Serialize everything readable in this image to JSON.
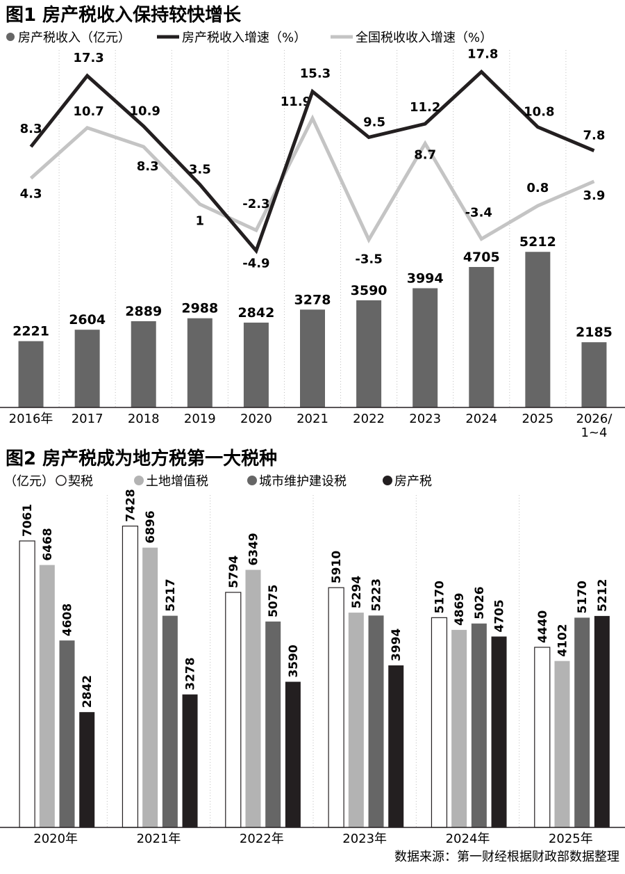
{
  "chart_data": [
    {
      "type": "bar",
      "title": "图1 房产税收入保持较快增长",
      "categories": [
        "2016年",
        "2017",
        "2018",
        "2019",
        "2020",
        "2021",
        "2022",
        "2023",
        "2024",
        "2025",
        "2026/\n1~4"
      ],
      "series": [
        {
          "name": "房产税收入（亿元）",
          "type": "bar",
          "values": [
            2221,
            2604,
            2889,
            2988,
            2842,
            3278,
            3590,
            3994,
            4705,
            5212,
            2185
          ],
          "color": "#666666"
        },
        {
          "name": "房产税收入增速（%）",
          "type": "line",
          "values": [
            8.3,
            17.3,
            10.9,
            3.5,
            -4.9,
            15.3,
            9.5,
            11.2,
            17.8,
            10.8,
            7.8
          ],
          "color": "#231f20"
        },
        {
          "name": "全国税收收入增速（%）",
          "type": "line",
          "values": [
            4.3,
            10.7,
            8.3,
            1,
            -2.3,
            11.9,
            -3.5,
            8.7,
            -3.4,
            0.8,
            3.9
          ],
          "color": "#c4c4c4"
        }
      ],
      "bar_ylim": [
        0,
        8000
      ],
      "line_ylim": [
        -7,
        21
      ],
      "grid": "vertical dotted"
    },
    {
      "type": "bar",
      "title": "图2 房产税成为地方税第一大税种",
      "unit": "（亿元）",
      "categories": [
        "2020年",
        "2021年",
        "2022年",
        "2023年",
        "2024年",
        "2025年"
      ],
      "series": [
        {
          "name": "契税",
          "values": [
            7061,
            7428,
            5794,
            5910,
            5170,
            4440
          ],
          "color": "#ffffff"
        },
        {
          "name": "土地增值税",
          "values": [
            6468,
            6896,
            6349,
            5294,
            4869,
            4102
          ],
          "color": "#b3b3b3"
        },
        {
          "name": "城市维护建设税",
          "values": [
            4608,
            5217,
            5075,
            5223,
            5026,
            5170
          ],
          "color": "#666666"
        },
        {
          "name": "房产税",
          "values": [
            2842,
            3278,
            3590,
            3994,
            4705,
            5212
          ],
          "color": "#231f20"
        }
      ],
      "ylim": [
        0,
        7500
      ],
      "grid": "vertical dotted"
    }
  ],
  "source": "数据来源：第一财经根据财政部数据整理"
}
